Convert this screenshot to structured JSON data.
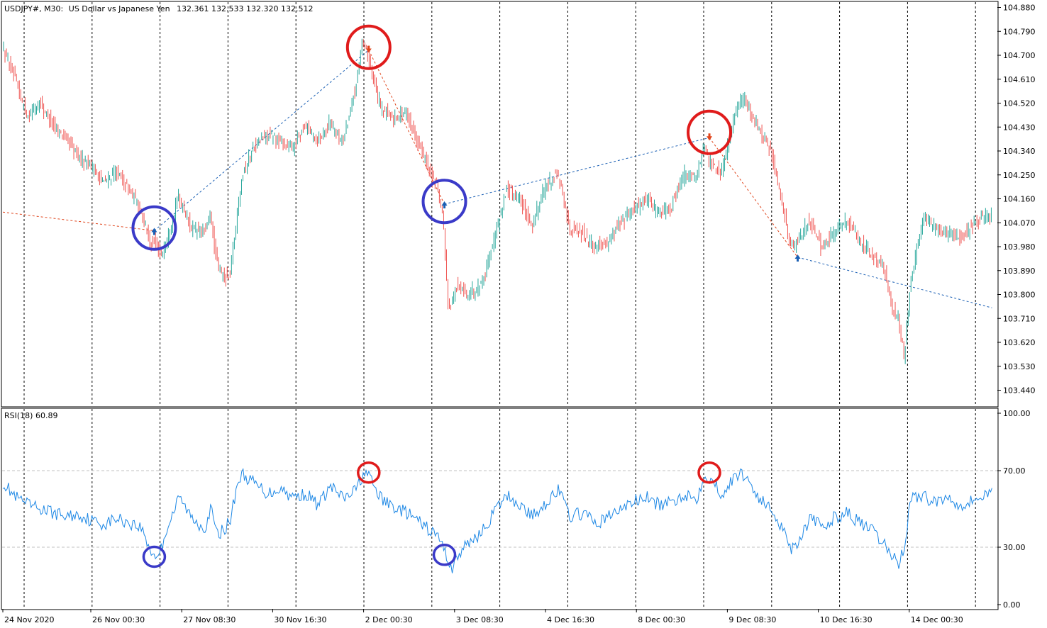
{
  "header": {
    "symbol": "USDJPY#, M30:",
    "description": "US Dollar vs Japanese Yen",
    "ohlc": "132.361 132.533 132.320 132.512"
  },
  "indicator": {
    "label": "RSI(18) 60.89"
  },
  "colors": {
    "bull": "#26a69a",
    "bear": "#ef5350",
    "rsi_line": "#1e88e5",
    "circle_top": "#e01b1b",
    "circle_bottom": "#3a3ac8",
    "trend_up": "#1a5fb4",
    "trend_down": "#e0441b",
    "arrow_up": "#1a5fb4",
    "arrow_down": "#e0441b"
  },
  "chart_data": [
    {
      "type": "candlestick",
      "title": "USDJPY#, M30",
      "yticks": [
        "104.880",
        "104.790",
        "104.700",
        "104.610",
        "104.520",
        "104.430",
        "104.340",
        "104.250",
        "104.160",
        "104.070",
        "103.980",
        "103.890",
        "103.800",
        "103.710",
        "103.620",
        "103.530",
        "103.440"
      ],
      "ylim": [
        103.38,
        104.9
      ],
      "xticks": [
        "24 Nov 2020",
        "26 Nov 00:30",
        "27 Nov 08:30",
        "30 Nov 16:30",
        "2 Dec 00:30",
        "3 Dec 08:30",
        "4 Dec 16:30",
        "8 Dec 00:30",
        "9 Dec 08:30",
        "10 Dec 16:30",
        "14 Dec 00:30"
      ],
      "path_points": [
        [
          0,
          104.73
        ],
        [
          1,
          104.61
        ],
        [
          2,
          104.47
        ],
        [
          3,
          104.52
        ],
        [
          4,
          104.44
        ],
        [
          5,
          104.39
        ],
        [
          6,
          104.32
        ],
        [
          7,
          104.29
        ],
        [
          8,
          104.22
        ],
        [
          9,
          104.26
        ],
        [
          10,
          104.2
        ],
        [
          11,
          104.12
        ],
        [
          11.4,
          104.05
        ],
        [
          11.8,
          103.98
        ],
        [
          12,
          104.0
        ],
        [
          12.6,
          103.95
        ],
        [
          13,
          104.0
        ],
        [
          14,
          104.17
        ],
        [
          15,
          104.05
        ],
        [
          16,
          104.03
        ],
        [
          16.5,
          104.1
        ],
        [
          17,
          103.92
        ],
        [
          17.5,
          103.87
        ],
        [
          18,
          103.86
        ],
        [
          19,
          104.25
        ],
        [
          20,
          104.36
        ],
        [
          21,
          104.4
        ],
        [
          22,
          104.38
        ],
        [
          23,
          104.35
        ],
        [
          24,
          104.44
        ],
        [
          25,
          104.38
        ],
        [
          26,
          104.45
        ],
        [
          27,
          104.37
        ],
        [
          28,
          104.58
        ],
        [
          28.5,
          104.74
        ],
        [
          29,
          104.7
        ],
        [
          30,
          104.5
        ],
        [
          31,
          104.46
        ],
        [
          32,
          104.49
        ],
        [
          33,
          104.37
        ],
        [
          34,
          104.25
        ],
        [
          34.5,
          104.2
        ],
        [
          35,
          104.06
        ],
        [
          35.3,
          103.78
        ],
        [
          35.6,
          103.76
        ],
        [
          36,
          103.83
        ],
        [
          37,
          103.8
        ],
        [
          38,
          103.84
        ],
        [
          39,
          104.01
        ],
        [
          40,
          104.2
        ],
        [
          41,
          104.16
        ],
        [
          42,
          104.06
        ],
        [
          43,
          104.2
        ],
        [
          44,
          104.26
        ],
        [
          45,
          104.05
        ],
        [
          46,
          104.03
        ],
        [
          47,
          103.98
        ],
        [
          48,
          104.0
        ],
        [
          49,
          104.07
        ],
        [
          50,
          104.12
        ],
        [
          51,
          104.16
        ],
        [
          52,
          104.11
        ],
        [
          53,
          104.13
        ],
        [
          54,
          104.25
        ],
        [
          55,
          104.24
        ],
        [
          55.6,
          104.36
        ],
        [
          56,
          104.3
        ],
        [
          57,
          104.26
        ],
        [
          58,
          104.46
        ],
        [
          58.5,
          104.54
        ],
        [
          59,
          104.52
        ],
        [
          60,
          104.42
        ],
        [
          61,
          104.33
        ],
        [
          61.6,
          104.18
        ],
        [
          62,
          104.1
        ],
        [
          62.5,
          103.98
        ],
        [
          63,
          104.0
        ],
        [
          64,
          104.08
        ],
        [
          65,
          103.97
        ],
        [
          66,
          104.04
        ],
        [
          67,
          104.08
        ],
        [
          68,
          104.0
        ],
        [
          69,
          103.94
        ],
        [
          69.5,
          103.92
        ],
        [
          70,
          103.88
        ],
        [
          70.5,
          103.75
        ],
        [
          71,
          103.72
        ],
        [
          71.5,
          103.56
        ],
        [
          72,
          103.85
        ],
        [
          73,
          104.08
        ],
        [
          74,
          104.05
        ],
        [
          75,
          104.03
        ],
        [
          76,
          104.02
        ],
        [
          77,
          104.06
        ],
        [
          78,
          104.09
        ],
        [
          78.4,
          104.1
        ]
      ],
      "overlay_lines": [
        {
          "type": "trend",
          "color": "trend_down",
          "from": [
            0,
            104.11
          ],
          "to": [
            12,
            104.04
          ]
        },
        {
          "type": "trend",
          "color": "trend_up",
          "from": [
            12,
            104.04
          ],
          "to": [
            29,
            104.72
          ]
        },
        {
          "type": "zigzag",
          "color": "trend_down",
          "from": [
            29,
            104.72
          ],
          "to": [
            35,
            104.14
          ]
        },
        {
          "type": "trend",
          "color": "trend_up",
          "from": [
            35,
            104.14
          ],
          "to": [
            56,
            104.39
          ]
        },
        {
          "type": "zigzag",
          "color": "trend_down",
          "from": [
            56,
            104.39
          ],
          "to": [
            63,
            103.94
          ]
        },
        {
          "type": "trend",
          "color": "trend_up",
          "from": [
            63,
            103.94
          ],
          "to": [
            78.4,
            103.75
          ]
        }
      ],
      "arrows": [
        {
          "dir": "up",
          "at": [
            12,
            104.04
          ]
        },
        {
          "dir": "down",
          "at": [
            29,
            104.72
          ]
        },
        {
          "dir": "up",
          "at": [
            35,
            104.14
          ]
        },
        {
          "dir": "down",
          "at": [
            56,
            104.39
          ]
        },
        {
          "dir": "up",
          "at": [
            63,
            103.94
          ]
        }
      ],
      "circles": [
        {
          "color": "circle_bottom",
          "at": [
            12,
            104.05
          ]
        },
        {
          "color": "circle_top",
          "at": [
            29,
            104.73
          ]
        },
        {
          "color": "circle_bottom",
          "at": [
            35,
            104.15
          ]
        },
        {
          "color": "circle_top",
          "at": [
            56,
            104.41
          ]
        }
      ]
    },
    {
      "type": "line",
      "title": "RSI(18) 60.89",
      "yticks": [
        "100.00",
        "70.00",
        "30.00",
        "0.00"
      ],
      "ylim": [
        0,
        100
      ],
      "levels": [
        30,
        70
      ],
      "series": [
        {
          "points": [
            [
              0,
              64
            ],
            [
              1,
              56
            ],
            [
              2,
              52
            ],
            [
              3,
              50
            ],
            [
              4,
              48
            ],
            [
              5,
              46
            ],
            [
              6,
              47
            ],
            [
              7,
              44
            ],
            [
              8,
              42
            ],
            [
              9,
              45
            ],
            [
              10,
              43
            ],
            [
              11,
              40
            ],
            [
              11.6,
              30
            ],
            [
              12,
              25
            ],
            [
              12.5,
              28
            ],
            [
              13,
              40
            ],
            [
              14,
              56
            ],
            [
              15,
              45
            ],
            [
              16,
              40
            ],
            [
              16.5,
              50
            ],
            [
              17,
              36
            ],
            [
              18,
              43
            ],
            [
              18.6,
              64
            ],
            [
              19,
              68
            ],
            [
              20,
              63
            ],
            [
              21,
              58
            ],
            [
              22,
              61
            ],
            [
              23,
              56
            ],
            [
              24,
              58
            ],
            [
              25,
              52
            ],
            [
              26,
              62
            ],
            [
              27,
              55
            ],
            [
              28,
              60
            ],
            [
              28.6,
              69
            ],
            [
              29,
              67
            ],
            [
              30,
              55
            ],
            [
              31,
              51
            ],
            [
              32,
              48
            ],
            [
              33,
              43
            ],
            [
              34,
              38
            ],
            [
              34.6,
              35
            ],
            [
              35,
              28
            ],
            [
              35.6,
              19
            ],
            [
              36,
              25
            ],
            [
              37,
              33
            ],
            [
              38,
              38
            ],
            [
              39,
              49
            ],
            [
              40,
              57
            ],
            [
              41,
              52
            ],
            [
              42,
              46
            ],
            [
              43,
              53
            ],
            [
              44,
              60
            ],
            [
              45,
              46
            ],
            [
              46,
              48
            ],
            [
              47,
              42
            ],
            [
              48,
              46
            ],
            [
              49,
              50
            ],
            [
              50,
              54
            ],
            [
              51,
              56
            ],
            [
              52,
              52
            ],
            [
              53,
              53
            ],
            [
              54,
              58
            ],
            [
              55,
              55
            ],
            [
              55.6,
              69
            ],
            [
              56,
              66
            ],
            [
              57,
              58
            ],
            [
              58,
              66
            ],
            [
              58.5,
              69
            ],
            [
              59,
              66
            ],
            [
              60,
              55
            ],
            [
              61,
              49
            ],
            [
              62,
              38
            ],
            [
              62.5,
              29
            ],
            [
              63,
              33
            ],
            [
              64,
              45
            ],
            [
              65,
              40
            ],
            [
              66,
              46
            ],
            [
              67,
              48
            ],
            [
              68,
              42
            ],
            [
              69,
              38
            ],
            [
              69.6,
              33
            ],
            [
              70,
              30
            ],
            [
              70.5,
              26
            ],
            [
              71,
              21
            ],
            [
              71.5,
              32
            ],
            [
              72,
              57
            ],
            [
              73,
              56
            ],
            [
              74,
              54
            ],
            [
              75,
              56
            ],
            [
              76,
              52
            ],
            [
              77,
              55
            ],
            [
              78,
              57
            ],
            [
              78.4,
              60.89
            ]
          ]
        }
      ],
      "circles": [
        {
          "color": "circle_bottom",
          "at": [
            12,
            25
          ]
        },
        {
          "color": "circle_top",
          "at": [
            29,
            69
          ]
        },
        {
          "color": "circle_bottom",
          "at": [
            35,
            26
          ]
        },
        {
          "color": "circle_top",
          "at": [
            56,
            69
          ]
        }
      ]
    }
  ]
}
